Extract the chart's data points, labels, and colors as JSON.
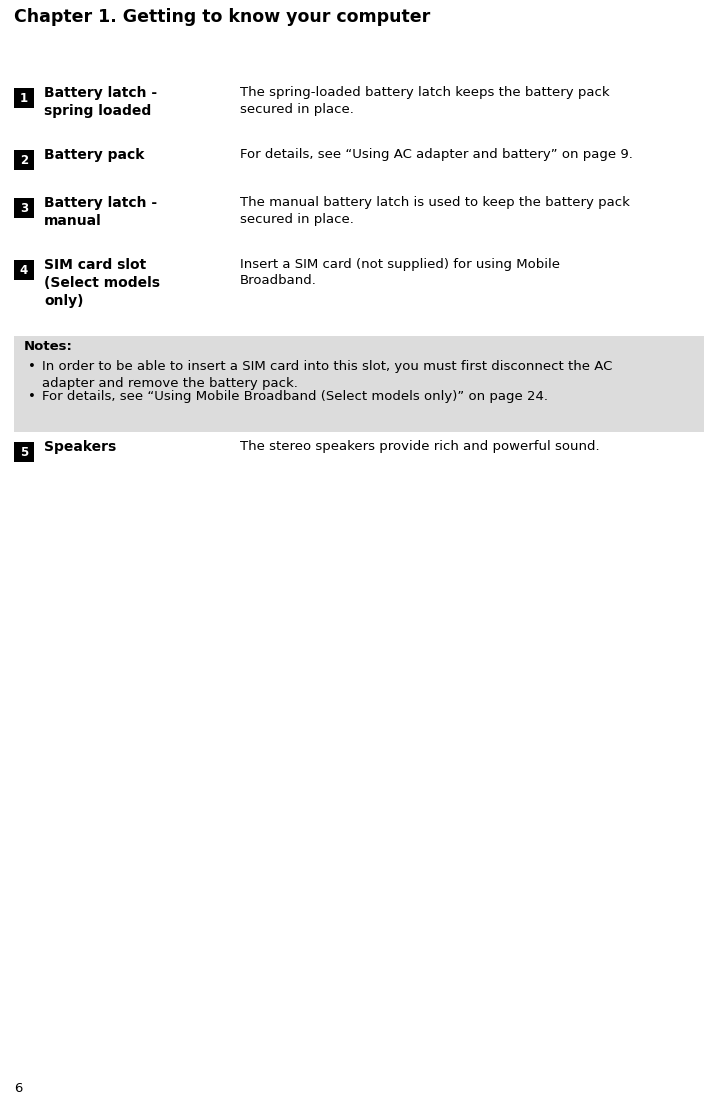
{
  "title": "Chapter 1. Getting to know your computer",
  "page_number": "6",
  "background_color": "#ffffff",
  "title_fontsize": 12.5,
  "body_fontsize": 9.5,
  "label_fontsize": 10,
  "badge_color": "#000000",
  "badge_text_color": "#ffffff",
  "notes_bg_color": "#dcdcdc",
  "rows": [
    {
      "badge": "1",
      "label": "Battery latch -\nspring loaded",
      "description": "The spring-loaded battery latch keeps the battery pack\nsecured in place."
    },
    {
      "badge": "2",
      "label": "Battery pack",
      "description": "For details, see “Using AC adapter and battery” on page 9."
    },
    {
      "badge": "3",
      "label": "Battery latch -\nmanual",
      "description": "The manual battery latch is used to keep the battery pack\nsecured in place."
    },
    {
      "badge": "4",
      "label": "SIM card slot\n(Select models\nonly)",
      "description": "Insert a SIM card (not supplied) for using Mobile\nBroadband."
    },
    {
      "badge": "5",
      "label": "Speakers",
      "description": "The stereo speakers provide rich and powerful sound."
    }
  ],
  "notes_title": "Notes:",
  "notes_bullets": [
    "In order to be able to insert a SIM card into this slot, you must first disconnect the AC\nadapter and remove the battery pack.",
    "For details, see “Using Mobile Broadband (Select models only)” on page 24."
  ]
}
